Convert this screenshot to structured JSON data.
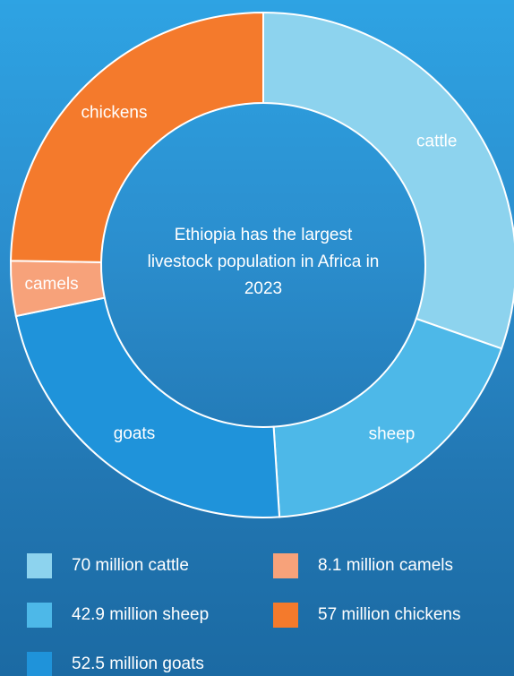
{
  "chart_data": {
    "type": "donut",
    "title": "Ethiopia has the largest livestock population in Africa in 2023",
    "categories": [
      "cattle",
      "sheep",
      "goats",
      "camels",
      "chickens"
    ],
    "values": [
      70,
      42.9,
      52.5,
      8.1,
      57
    ],
    "value_labels": [
      "70 million cattle",
      "42.9 million sheep",
      "52.5 million goats",
      "8.1 million camels",
      "57 million chickens"
    ],
    "colors": [
      "#8dd3ee",
      "#4db8e8",
      "#1f93da",
      "#f7a27a",
      "#f47a2c"
    ]
  }
}
